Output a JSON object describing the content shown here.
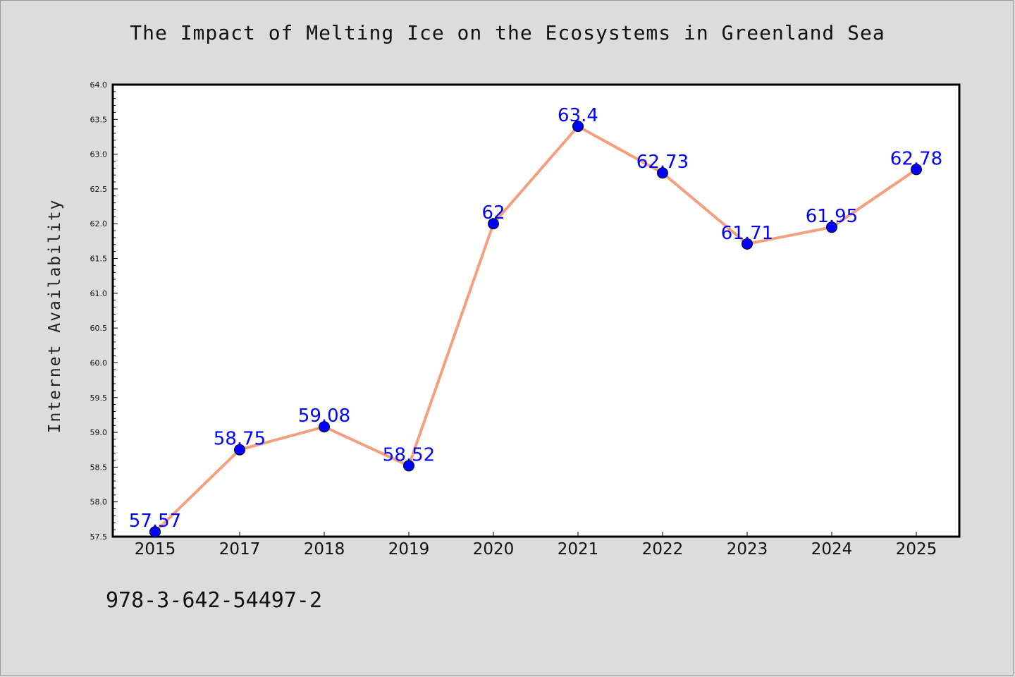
{
  "page": {
    "isbn": "978-3-642-54497-2"
  },
  "colors": {
    "background": "#dcdcdc",
    "plot_area": "#ffffff",
    "line": "#f4a07e",
    "marker": "#0000ff",
    "data_label": "#0000ff"
  },
  "chart_data": {
    "type": "line",
    "title": "The Impact of Melting Ice on the Ecosystems in Greenland Sea",
    "xlabel": "",
    "ylabel": "Internet Availability",
    "categories": [
      "2015",
      "2017",
      "2018",
      "2019",
      "2020",
      "2021",
      "2022",
      "2023",
      "2024",
      "2025"
    ],
    "series": [
      {
        "values": [
          57.57,
          58.75,
          59.08,
          58.52,
          62,
          63.4,
          62.73,
          61.71,
          61.95,
          62.78
        ],
        "labels": [
          "57.57",
          "58.75",
          "59.08",
          "58.52",
          "62",
          "63.4",
          "62.73",
          "61.71",
          "61.95",
          "62.78"
        ]
      }
    ],
    "ylim": [
      57.5,
      64.0
    ],
    "yticks": [
      "57.5",
      "58.0",
      "58.5",
      "59.0",
      "59.5",
      "60.0",
      "60.5",
      "61.0",
      "61.5",
      "62.0",
      "62.5",
      "63.0",
      "63.5",
      "64.0"
    ],
    "grid": false,
    "legend": "none"
  }
}
